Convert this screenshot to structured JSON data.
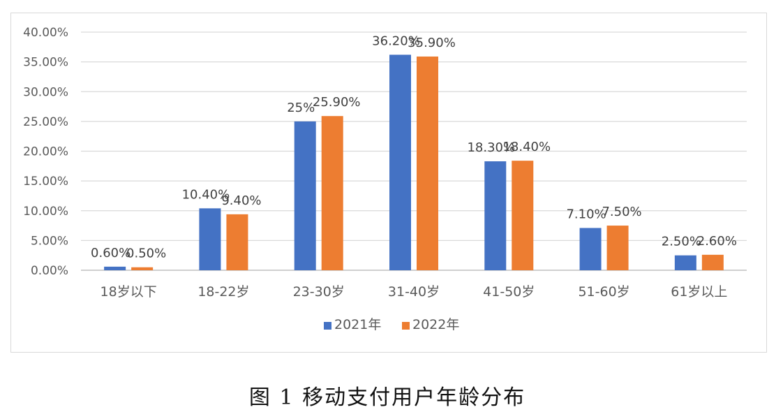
{
  "caption": "图 1 移动支付用户年龄分布",
  "chart_data": {
    "type": "bar",
    "categories": [
      "18岁以下",
      "18-22岁",
      "23-30岁",
      "31-40岁",
      "41-50岁",
      "51-60岁",
      "61岁以上"
    ],
    "series": [
      {
        "name": "2021年",
        "color": "#4472C4",
        "values": [
          0.6,
          10.4,
          25.0,
          36.2,
          18.3,
          7.1,
          2.5
        ],
        "labels": [
          "0.60%",
          "10.40%",
          "25%",
          "36.20%",
          "18.30%",
          "7.10%",
          "2.50%"
        ]
      },
      {
        "name": "2022年",
        "color": "#ED7D31",
        "values": [
          0.5,
          9.4,
          25.9,
          35.9,
          18.4,
          7.5,
          2.6
        ],
        "labels": [
          "0.50%",
          "9.40%",
          "25.90%",
          "35.90%",
          "18.40%",
          "7.50%",
          "2.60%"
        ]
      }
    ],
    "ylim": [
      0,
      40
    ],
    "yticks": [
      0,
      5,
      10,
      15,
      20,
      25,
      30,
      35,
      40
    ],
    "ytick_labels": [
      "0.00%",
      "5.00%",
      "10.00%",
      "15.00%",
      "20.00%",
      "25.00%",
      "30.00%",
      "35.00%",
      "40.00%"
    ],
    "grid": true,
    "legend_position": "bottom",
    "gridline_color": "#d9d9d9",
    "axis_line_color": "#bfbfbf"
  }
}
